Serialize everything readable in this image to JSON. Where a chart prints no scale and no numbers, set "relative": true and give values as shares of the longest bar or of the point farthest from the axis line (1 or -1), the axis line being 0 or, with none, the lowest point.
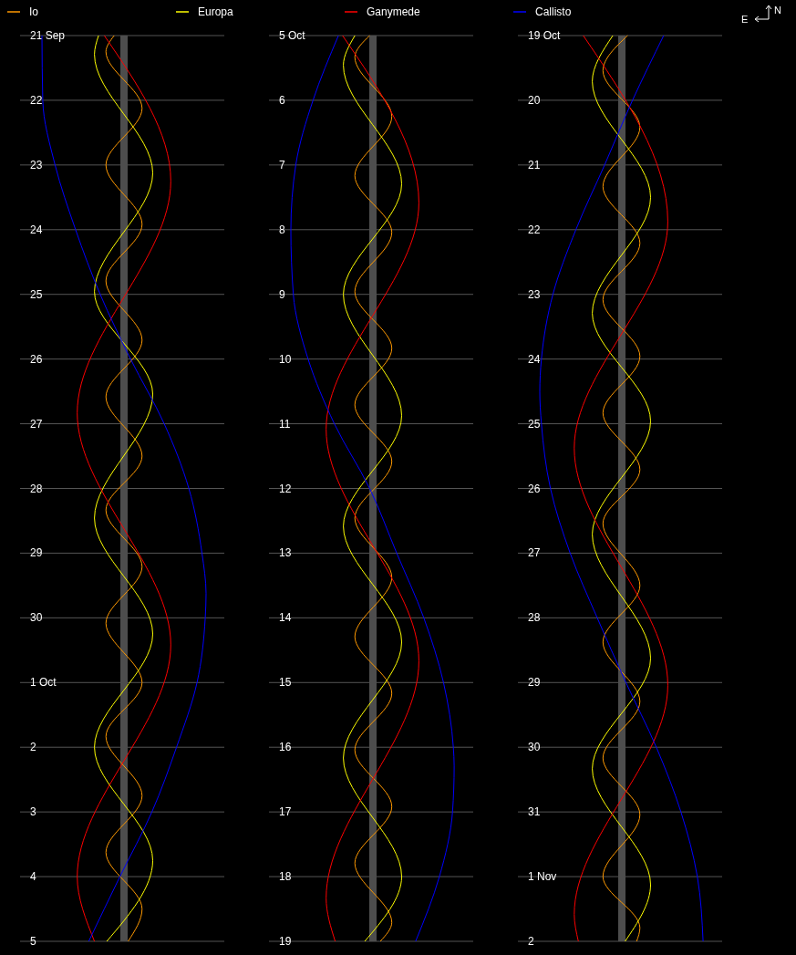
{
  "chart_data": [
    {
      "type": "line",
      "relative": true,
      "orientation": "horizontal",
      "grid": "y",
      "legend": "top",
      "ylim": [
        "--10-05",
        "--09-21"
      ],
      "ref_lines": [
        {
          "axis": "x",
          "value": 0,
          "color": "#4d4d4d"
        }
      ],
      "yticks": [
        {
          "value": "--09-21",
          "label": "21 Sep"
        },
        {
          "value": "--09-22",
          "label": "22"
        },
        {
          "value": "--09-23",
          "label": "23"
        },
        {
          "value": "--09-24",
          "label": "24"
        },
        {
          "value": "--09-25",
          "label": "25"
        },
        {
          "value": "--09-26",
          "label": "26"
        },
        {
          "value": "--09-27",
          "label": "27"
        },
        {
          "value": "--09-28",
          "label": "28"
        },
        {
          "value": "--09-29",
          "label": "29"
        },
        {
          "value": "--09-30",
          "label": "30"
        },
        {
          "value": "--10-01",
          "label": "1 Oct"
        },
        {
          "value": "--10-02",
          "label": "2"
        },
        {
          "value": "--10-03",
          "label": "3"
        },
        {
          "value": "--10-04",
          "label": "4"
        },
        {
          "value": "--10-05",
          "label": "5"
        }
      ],
      "series": [
        {
          "name": "Io",
          "color": "#ff9900",
          "x": [
            "--09-21T00:00",
            "--09-21T06:00",
            "--09-22T03:00",
            "--09-23T00:00",
            "--09-23T22:00",
            "--09-24T19:00",
            "--09-25T17:00",
            "--09-26T14:00",
            "--09-27T12:00",
            "--09-28T08:00",
            "--09-29T05:00",
            "--09-30T02:00",
            "--10-01T00:00",
            "--10-01T20:00",
            "--10-02T18:00",
            "--10-03T15:00",
            "--10-04T12:00",
            "--10-05T00:00"
          ],
          "values": [
            -0.12,
            -0.22,
            0.22,
            -0.22,
            0.22,
            -0.22,
            0.22,
            -0.22,
            0.22,
            -0.22,
            0.22,
            -0.22,
            0.22,
            -0.22,
            0.22,
            -0.22,
            0.22,
            0.05
          ]
        },
        {
          "name": "Europa",
          "color": "#ffff00",
          "x": [
            "--09-21T00:00",
            "--09-21T07:00",
            "--09-23T03:00",
            "--09-24T23:00",
            "--09-26T13:00",
            "--09-28T11:00",
            "--09-30T06:00",
            "--10-02T00:00",
            "--10-03T18:00",
            "--10-05T00:00"
          ],
          "values": [
            -0.31,
            -0.36,
            0.35,
            -0.36,
            0.35,
            -0.36,
            0.35,
            -0.36,
            0.35,
            -0.21
          ]
        },
        {
          "name": "Ganymede",
          "color": "#ff0000",
          "x": [
            "--09-21T00:00",
            "--09-23T06:00",
            "--09-26T20:00",
            "--09-30T10:00",
            "--10-04T00:00",
            "--10-05T00:00"
          ],
          "values": [
            -0.24,
            0.57,
            -0.57,
            0.57,
            -0.57,
            -0.36
          ]
        },
        {
          "name": "Callisto",
          "color": "#0000ff",
          "x": [
            "--09-21T00:00",
            "--09-22T00:00",
            "--09-23T00:00",
            "--09-24T00:00",
            "--09-25T00:00",
            "--09-26T00:00",
            "--09-27T00:00",
            "--09-28T00:00",
            "--09-29T00:00",
            "--09-29T15:00",
            "--09-30T00:00",
            "--10-01T00:00",
            "--10-02T00:00",
            "--10-03T00:00",
            "--10-04T00:00",
            "--10-05T00:00"
          ],
          "values": [
            -1.0,
            -0.99,
            -0.84,
            -0.59,
            -0.29,
            0.08,
            0.49,
            0.79,
            0.95,
            1.0,
            0.99,
            0.89,
            0.64,
            0.34,
            -0.05,
            -0.43
          ]
        }
      ]
    },
    {
      "type": "line",
      "relative": true,
      "orientation": "horizontal",
      "grid": "y",
      "ylim": [
        "--10-19",
        "--10-05"
      ],
      "ref_lines": [
        {
          "axis": "x",
          "value": 0,
          "color": "#4d4d4d"
        }
      ],
      "yticks": [
        {
          "value": "--10-05",
          "label": "5 Oct"
        },
        {
          "value": "--10-06",
          "label": "6"
        },
        {
          "value": "--10-07",
          "label": "7"
        },
        {
          "value": "--10-08",
          "label": "8"
        },
        {
          "value": "--10-09",
          "label": "9"
        },
        {
          "value": "--10-10",
          "label": "10"
        },
        {
          "value": "--10-11",
          "label": "11"
        },
        {
          "value": "--10-12",
          "label": "12"
        },
        {
          "value": "--10-13",
          "label": "13"
        },
        {
          "value": "--10-14",
          "label": "14"
        },
        {
          "value": "--10-15",
          "label": "15"
        },
        {
          "value": "--10-16",
          "label": "16"
        },
        {
          "value": "--10-17",
          "label": "17"
        },
        {
          "value": "--10-18",
          "label": "18"
        },
        {
          "value": "--10-19",
          "label": "19"
        }
      ],
      "series": [
        {
          "color": "#ff9900",
          "x": [
            "--10-05T00:00",
            "--10-05T08:00",
            "--10-06T06:00",
            "--10-07T04:00",
            "--10-08T01:00",
            "--10-08T23:00",
            "--10-09T20:00",
            "--10-10T17:00",
            "--10-11T14:00",
            "--10-12T11:00",
            "--10-13T09:00",
            "--10-14T07:00",
            "--10-15T04:00",
            "--10-16T01:00",
            "--10-16T22:00",
            "--10-17T19:00",
            "--10-18T17:00",
            "--10-19T00:00"
          ],
          "values": [
            -0.04,
            -0.22,
            0.23,
            -0.22,
            0.23,
            -0.22,
            0.23,
            -0.22,
            0.23,
            -0.22,
            0.23,
            -0.22,
            0.23,
            -0.22,
            0.23,
            -0.22,
            0.23,
            0.09
          ]
        },
        {
          "color": "#ffff00",
          "x": [
            "--10-05T00:00",
            "--10-05T11:00",
            "--10-07T07:00",
            "--10-09T00:00",
            "--10-10T21:00",
            "--10-12T14:00",
            "--10-14T09:00",
            "--10-16T04:00",
            "--10-18T00:00",
            "--10-19T00:00"
          ],
          "values": [
            -0.22,
            -0.36,
            0.35,
            -0.36,
            0.35,
            -0.36,
            0.35,
            -0.36,
            0.35,
            -0.1
          ]
        },
        {
          "color": "#ff0000",
          "x": [
            "--10-05T00:00",
            "--10-07T14:00",
            "--10-11T02:00",
            "--10-14T16:00",
            "--10-18T08:00",
            "--10-19T00:00"
          ],
          "values": [
            -0.37,
            0.56,
            -0.57,
            0.56,
            -0.57,
            -0.46
          ]
        },
        {
          "color": "#0000ff",
          "x": [
            "--10-05T00:00",
            "--10-06T00:00",
            "--10-07T00:00",
            "--10-08T00:00",
            "--10-09T00:00",
            "--10-10T00:00",
            "--10-11T00:00",
            "--10-12T00:00",
            "--10-13T00:00",
            "--10-14T00:00",
            "--10-15T00:00",
            "--10-16T00:00",
            "--10-16T07:00",
            "--10-17T00:00",
            "--10-18T00:00",
            "--10-19T00:00"
          ],
          "values": [
            -0.42,
            -0.73,
            -0.94,
            -1.0,
            -0.97,
            -0.79,
            -0.47,
            -0.04,
            0.29,
            0.62,
            0.86,
            0.98,
            0.99,
            0.97,
            0.81,
            0.52
          ]
        }
      ]
    },
    {
      "type": "line",
      "relative": true,
      "orientation": "horizontal",
      "grid": "y",
      "ylim": [
        "--11-02",
        "--10-19"
      ],
      "ref_lines": [
        {
          "axis": "x",
          "value": 0,
          "color": "#4d4d4d"
        }
      ],
      "annotations": [
        "E",
        "N"
      ],
      "yticks": [
        {
          "value": "--10-19",
          "label": "19 Oct"
        },
        {
          "value": "--10-20",
          "label": "20"
        },
        {
          "value": "--10-21",
          "label": "21"
        },
        {
          "value": "--10-22",
          "label": "22"
        },
        {
          "value": "--10-23",
          "label": "23"
        },
        {
          "value": "--10-24",
          "label": "24"
        },
        {
          "value": "--10-25",
          "label": "25"
        },
        {
          "value": "--10-26",
          "label": "26"
        },
        {
          "value": "--10-27",
          "label": "27"
        },
        {
          "value": "--10-28",
          "label": "28"
        },
        {
          "value": "--10-29",
          "label": "29"
        },
        {
          "value": "--10-30",
          "label": "30"
        },
        {
          "value": "--10-31",
          "label": "31"
        },
        {
          "value": "--11-01",
          "label": "1 Nov"
        },
        {
          "value": "--11-02",
          "label": "2"
        }
      ],
      "series": [
        {
          "color": "#ff9900",
          "x": [
            "--10-19T00:00",
            "--10-19T13:00",
            "--10-20T10:00",
            "--10-21T08:00",
            "--10-22T05:00",
            "--10-23T02:00",
            "--10-23T23:00",
            "--10-24T20:00",
            "--10-25T17:00",
            "--10-26T13:00",
            "--10-27T12:00",
            "--10-28T09:00",
            "--10-29T07:00",
            "--10-30T04:00",
            "--10-31T01:00",
            "--11-01T00:00",
            "--11-01T19:00",
            "--11-02T00:00"
          ],
          "values": [
            0.07,
            -0.23,
            0.22,
            -0.23,
            0.22,
            -0.23,
            0.22,
            -0.23,
            0.22,
            -0.23,
            0.22,
            -0.23,
            0.22,
            -0.23,
            0.22,
            -0.23,
            0.22,
            0.18
          ]
        },
        {
          "color": "#ffff00",
          "x": [
            "--10-19T00:00",
            "--10-19T17:00",
            "--10-21T12:00",
            "--10-23T07:00",
            "--10-24T23:00",
            "--10-26T17:00",
            "--10-28T15:00",
            "--10-30T08:00",
            "--11-01T03:00",
            "--11-02T00:00"
          ],
          "values": [
            -0.11,
            -0.36,
            0.35,
            -0.36,
            0.35,
            -0.36,
            0.35,
            -0.36,
            0.35,
            0.04
          ]
        },
        {
          "color": "#ff0000",
          "x": [
            "--10-19T00:00",
            "--10-21T21:00",
            "--10-25T09:00",
            "--10-29T01:00",
            "--11-01T14:00",
            "--11-02T00:00"
          ],
          "values": [
            -0.47,
            0.56,
            -0.58,
            0.56,
            -0.58,
            -0.53
          ]
        },
        {
          "color": "#0000ff",
          "x": [
            "--10-19T00:00",
            "--10-20T00:00",
            "--10-21T00:00",
            "--10-22T00:00",
            "--10-23T00:00",
            "--10-24T00:00",
            "--10-24T12:00",
            "--10-25T00:00",
            "--10-26T00:00",
            "--10-27T00:00",
            "--10-28T00:00",
            "--10-29T00:00",
            "--10-30T00:00",
            "--10-31T00:00",
            "--11-01T00:00",
            "--11-02T00:00"
          ],
          "values": [
            0.51,
            0.13,
            -0.21,
            -0.56,
            -0.84,
            -0.98,
            -1.0,
            -0.98,
            -0.87,
            -0.63,
            -0.3,
            0.05,
            0.42,
            0.72,
            0.92,
            0.99
          ]
        }
      ]
    }
  ]
}
